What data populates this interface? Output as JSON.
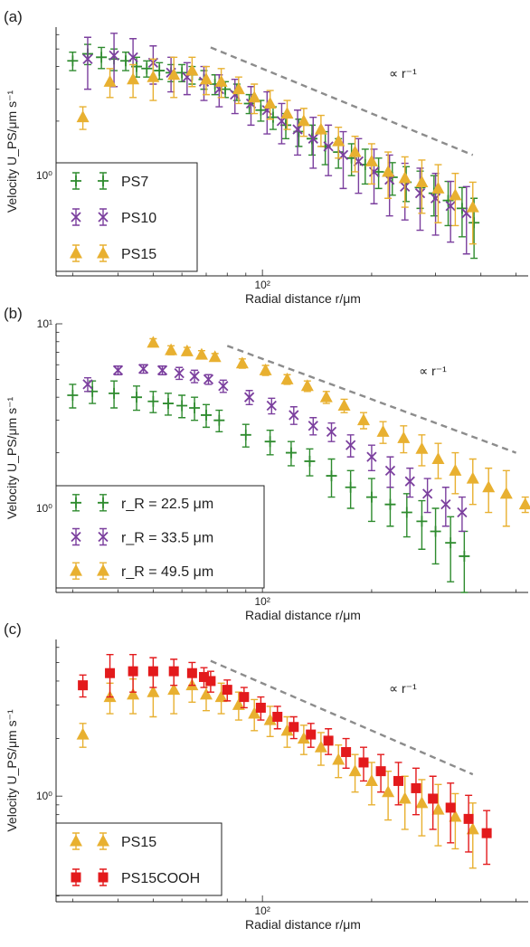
{
  "chart_data": [
    {
      "panel_label": "(a)",
      "type": "scatter",
      "xlabel": "Radial distance r/μm",
      "ylabel": "Velocity U_PS/μm s⁻¹",
      "log_x": true,
      "log_y": true,
      "xlim": [
        27,
        540
      ],
      "ylim": [
        0.28,
        6.6
      ],
      "x_ticks": [
        {
          "value": 100,
          "label": "10²"
        }
      ],
      "y_ticks": [
        {
          "value": 1,
          "label": "10⁰"
        }
      ],
      "annotation": "∝ r⁻¹",
      "reference_line": {
        "x": [
          72,
          380
        ],
        "y": [
          5.1,
          1.3
        ]
      },
      "legend_position": "bottom-left",
      "series": [
        {
          "name": "PS7",
          "marker": "plus",
          "color": "#2e8b2e",
          "x": [
            30,
            33,
            36,
            39,
            42,
            45,
            48,
            52,
            56,
            60,
            64,
            69,
            74,
            79,
            85,
            92,
            99,
            107,
            116,
            126,
            137,
            149,
            162,
            176,
            192,
            209,
            228,
            249,
            272,
            297,
            325,
            355,
            383
          ],
          "y": [
            4.3,
            4.7,
            4.5,
            4.4,
            4.3,
            4.0,
            3.9,
            3.8,
            3.7,
            3.7,
            3.6,
            3.4,
            3.2,
            3.0,
            2.9,
            2.5,
            2.3,
            2.1,
            1.9,
            1.75,
            1.6,
            1.45,
            1.35,
            1.25,
            1.15,
            1.05,
            0.98,
            0.92,
            0.86,
            0.8,
            0.73,
            0.66,
            0.55
          ],
          "err": [
            0.5,
            0.6,
            0.6,
            0.6,
            0.5,
            0.5,
            0.4,
            0.4,
            0.4,
            0.4,
            0.4,
            0.4,
            0.4,
            0.3,
            0.3,
            0.3,
            0.3,
            0.3,
            0.3,
            0.3,
            0.3,
            0.3,
            0.25,
            0.25,
            0.25,
            0.2,
            0.2,
            0.2,
            0.2,
            0.2,
            0.2,
            0.2,
            0.2
          ]
        },
        {
          "name": "PS10",
          "marker": "cross",
          "color": "#7b3f9e",
          "x": [
            33,
            39,
            44,
            50,
            56,
            62,
            69,
            76,
            84,
            93,
            103,
            113,
            125,
            138,
            152,
            167,
            184,
            203,
            224,
            247,
            272,
            300,
            330,
            365
          ],
          "y": [
            4.4,
            4.6,
            4.5,
            4.2,
            3.7,
            3.5,
            3.3,
            3.0,
            2.8,
            2.5,
            2.3,
            2.0,
            1.8,
            1.6,
            1.45,
            1.3,
            1.2,
            1.05,
            0.95,
            0.87,
            0.8,
            0.75,
            0.68,
            0.62
          ],
          "err": [
            1.4,
            1.5,
            1.2,
            1.0,
            0.8,
            0.7,
            0.7,
            0.6,
            0.6,
            0.6,
            0.6,
            0.5,
            0.5,
            0.5,
            0.45,
            0.45,
            0.4,
            0.35,
            0.35,
            0.3,
            0.3,
            0.28,
            0.25,
            0.25
          ]
        },
        {
          "name": "PS15",
          "marker": "triangle",
          "color": "#e8b030",
          "x": [
            32,
            38,
            44,
            50,
            57,
            64,
            70,
            77,
            86,
            95,
            105,
            117,
            130,
            145,
            162,
            180,
            200,
            222,
            247,
            275,
            305,
            340,
            380
          ],
          "y": [
            2.1,
            3.3,
            3.4,
            3.5,
            3.6,
            3.8,
            3.4,
            3.3,
            3.0,
            2.7,
            2.5,
            2.2,
            2.0,
            1.8,
            1.55,
            1.35,
            1.2,
            1.05,
            0.97,
            0.92,
            0.85,
            0.78,
            0.67
          ],
          "err": [
            0.3,
            0.6,
            0.7,
            0.9,
            0.9,
            0.7,
            0.6,
            0.6,
            0.5,
            0.5,
            0.45,
            0.4,
            0.35,
            0.35,
            0.3,
            0.3,
            0.3,
            0.3,
            0.3,
            0.3,
            0.3,
            0.25,
            0.25
          ]
        }
      ]
    },
    {
      "panel_label": "(b)",
      "type": "scatter",
      "xlabel": "Radial distance r/μm",
      "ylabel": "Velocity U_PS/μm s⁻¹",
      "log_x": true,
      "log_y": true,
      "xlim": [
        27,
        540
      ],
      "ylim": [
        0.35,
        10
      ],
      "x_ticks": [
        {
          "value": 100,
          "label": "10²"
        }
      ],
      "y_ticks": [
        {
          "value": 1,
          "label": "10⁰"
        },
        {
          "value": 10,
          "label": "10¹"
        }
      ],
      "annotation": "∝ r⁻¹",
      "reference_line": {
        "x": [
          80,
          500
        ],
        "y": [
          7.6,
          2.0
        ]
      },
      "legend_position": "bottom-left",
      "series": [
        {
          "name": "r_R = 22.5 μm",
          "marker": "plus",
          "color": "#2e8b2e",
          "x": [
            30,
            34,
            39,
            45,
            50,
            55,
            60,
            65,
            70,
            76,
            90,
            105,
            120,
            135,
            155,
            175,
            200,
            225,
            250,
            275,
            300,
            330,
            360
          ],
          "y": [
            4.1,
            4.3,
            4.2,
            4.0,
            3.8,
            3.7,
            3.6,
            3.5,
            3.2,
            3.0,
            2.5,
            2.3,
            2.0,
            1.8,
            1.5,
            1.3,
            1.15,
            1.05,
            0.95,
            0.85,
            0.75,
            0.65,
            0.55
          ],
          "err": [
            0.6,
            0.6,
            0.7,
            0.6,
            0.5,
            0.5,
            0.5,
            0.5,
            0.45,
            0.4,
            0.35,
            0.35,
            0.3,
            0.3,
            0.35,
            0.3,
            0.3,
            0.25,
            0.25,
            0.25,
            0.25,
            0.25,
            0.2
          ]
        },
        {
          "name": "r_R = 33.5 μm",
          "marker": "cross",
          "color": "#7b3f9e",
          "x": [
            33,
            40,
            47,
            53,
            59,
            65,
            71,
            78,
            92,
            106,
            122,
            138,
            155,
            175,
            200,
            225,
            255,
            285,
            320,
            355
          ],
          "y": [
            4.7,
            5.6,
            5.7,
            5.6,
            5.4,
            5.2,
            5.0,
            4.6,
            4.0,
            3.6,
            3.2,
            2.8,
            2.6,
            2.2,
            1.9,
            1.6,
            1.4,
            1.2,
            1.05,
            0.95
          ],
          "err": [
            0.4,
            0.3,
            0.3,
            0.3,
            0.4,
            0.4,
            0.3,
            0.35,
            0.35,
            0.35,
            0.35,
            0.3,
            0.3,
            0.3,
            0.3,
            0.3,
            0.25,
            0.25,
            0.25,
            0.2
          ]
        },
        {
          "name": "r_R = 49.5 μm",
          "marker": "triangle",
          "color": "#e8b030",
          "x": [
            50,
            56,
            62,
            68,
            74,
            88,
            102,
            117,
            133,
            150,
            168,
            190,
            215,
            245,
            275,
            305,
            340,
            380,
            420,
            470,
            530
          ],
          "y": [
            7.9,
            7.2,
            7.1,
            6.8,
            6.6,
            6.1,
            5.6,
            5.0,
            4.6,
            4.0,
            3.6,
            3.0,
            2.6,
            2.4,
            2.1,
            1.85,
            1.6,
            1.45,
            1.3,
            1.2,
            1.05
          ],
          "err": [
            0.4,
            0.4,
            0.35,
            0.35,
            0.3,
            0.35,
            0.35,
            0.3,
            0.3,
            0.3,
            0.3,
            0.3,
            0.35,
            0.4,
            0.4,
            0.4,
            0.4,
            0.4,
            0.35,
            0.4,
            0.1
          ]
        }
      ]
    },
    {
      "panel_label": "(c)",
      "type": "scatter",
      "xlabel": "Radial distance r/μm",
      "ylabel": "Velocity U_PS/μm s⁻¹",
      "log_x": true,
      "log_y": true,
      "xlim": [
        27,
        540
      ],
      "ylim": [
        0.28,
        6.6
      ],
      "x_ticks": [
        {
          "value": 100,
          "label": "10²"
        }
      ],
      "y_ticks": [
        {
          "value": 1,
          "label": "10⁰"
        }
      ],
      "annotation": "∝ r⁻¹",
      "reference_line": {
        "x": [
          72,
          380
        ],
        "y": [
          5.1,
          1.3
        ]
      },
      "legend_position": "bottom-left",
      "series": [
        {
          "name": "PS15",
          "marker": "triangle",
          "color": "#e8b030",
          "x": [
            32,
            38,
            44,
            50,
            57,
            64,
            70,
            77,
            86,
            95,
            105,
            117,
            130,
            145,
            162,
            180,
            200,
            222,
            247,
            275,
            305,
            340,
            380
          ],
          "y": [
            2.1,
            3.3,
            3.4,
            3.5,
            3.6,
            3.8,
            3.4,
            3.3,
            3.0,
            2.7,
            2.5,
            2.2,
            2.0,
            1.8,
            1.55,
            1.35,
            1.2,
            1.05,
            0.97,
            0.92,
            0.85,
            0.78,
            0.67
          ],
          "err": [
            0.3,
            0.6,
            0.7,
            0.9,
            0.9,
            0.7,
            0.6,
            0.6,
            0.5,
            0.5,
            0.45,
            0.4,
            0.35,
            0.35,
            0.3,
            0.3,
            0.3,
            0.3,
            0.3,
            0.3,
            0.3,
            0.25,
            0.25
          ]
        },
        {
          "name": "PS15COOH",
          "marker": "square",
          "color": "#e31a1c",
          "x": [
            32,
            38,
            44,
            50,
            57,
            64,
            69,
            72,
            80,
            89,
            99,
            110,
            122,
            136,
            152,
            170,
            190,
            212,
            237,
            265,
            295,
            330,
            370,
            415
          ],
          "y": [
            3.8,
            4.4,
            4.5,
            4.5,
            4.5,
            4.4,
            4.2,
            4.0,
            3.6,
            3.3,
            2.9,
            2.6,
            2.3,
            2.1,
            1.95,
            1.7,
            1.5,
            1.35,
            1.2,
            1.1,
            0.97,
            0.87,
            0.76,
            0.64
          ],
          "err": [
            0.5,
            1.1,
            1.0,
            0.8,
            0.7,
            0.6,
            0.5,
            0.5,
            0.45,
            0.4,
            0.4,
            0.35,
            0.3,
            0.3,
            0.3,
            0.3,
            0.3,
            0.3,
            0.3,
            0.3,
            0.3,
            0.3,
            0.25,
            0.2
          ]
        }
      ]
    }
  ]
}
